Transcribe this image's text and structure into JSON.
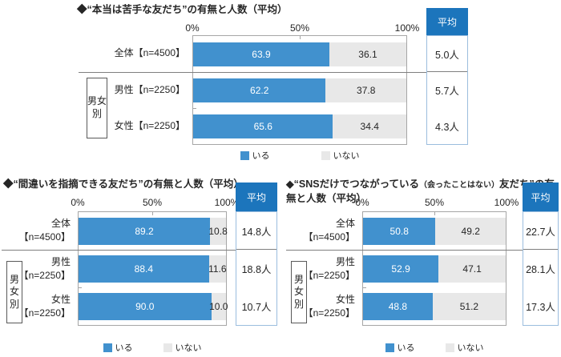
{
  "theme": {
    "bar_blue": "#4191CE",
    "bar_gray": "#E8E8E8",
    "header_blue": "#1C75BC",
    "plot_border": "#A6A6A6",
    "separator": "#7F7F7F",
    "avg_border": "#9BBDDE"
  },
  "chart_data": [
    {
      "type": "bar",
      "orientation": "horizontal",
      "stacked": true,
      "title": "◆“本当は苦手な友だち”の有無と人数（平均）",
      "categories": [
        "全体【n=4500】",
        "男性【n=2250】",
        "女性【n=2250】"
      ],
      "series": [
        {
          "name": "いる",
          "color": "#4191CE",
          "values": [
            63.9,
            62.2,
            65.6
          ]
        },
        {
          "name": "いない",
          "color": "#E8E8E8",
          "values": [
            36.1,
            37.8,
            34.4
          ]
        }
      ],
      "averages": {
        "header": "平均",
        "values": [
          "5.0人",
          "5.7人",
          "4.3人"
        ]
      },
      "group_label": "男女別",
      "x_ticks": [
        "0%",
        "50%",
        "100%"
      ],
      "xlim": [
        0,
        100
      ],
      "legend": [
        "いる",
        "いない"
      ],
      "legend_position": "bottom"
    },
    {
      "type": "bar",
      "orientation": "horizontal",
      "stacked": true,
      "title": "◆“間違いを指摘できる友だち”の有無と人数（平均）",
      "categories": [
        "全体\n【n=4500】",
        "男性\n【n=2250】",
        "女性\n【n=2250】"
      ],
      "series": [
        {
          "name": "いる",
          "color": "#4191CE",
          "values": [
            89.2,
            88.4,
            90.0
          ]
        },
        {
          "name": "いない",
          "color": "#E8E8E8",
          "values": [
            10.8,
            11.6,
            10.0
          ]
        }
      ],
      "averages": {
        "header": "平均",
        "values": [
          "14.8人",
          "18.8人",
          "10.7人"
        ]
      },
      "group_label": "男女別",
      "x_ticks": [
        "0%",
        "50%",
        "100%"
      ],
      "xlim": [
        0,
        100
      ],
      "legend": [
        "いる",
        "いない"
      ],
      "legend_position": "bottom"
    },
    {
      "type": "bar",
      "orientation": "horizontal",
      "stacked": true,
      "title": "◆“SNSだけでつながっている（会ったことはない）友だち”の有無と人数（平均）",
      "title_parts": {
        "pre": "◆“SNSだけでつながっている",
        "small": "（会ったことはない）",
        "post": "友だち”の有無と人数（平均）"
      },
      "categories": [
        "全体\n【n=4500】",
        "男性\n【n=2250】",
        "女性\n【n=2250】"
      ],
      "series": [
        {
          "name": "いる",
          "color": "#4191CE",
          "values": [
            50.8,
            52.9,
            48.8
          ]
        },
        {
          "name": "いない",
          "color": "#E8E8E8",
          "values": [
            49.2,
            47.1,
            51.2
          ]
        }
      ],
      "averages": {
        "header": "平均",
        "values": [
          "22.7人",
          "28.1人",
          "17.3人"
        ]
      },
      "group_label": "男女別",
      "x_ticks": [
        "0%",
        "50%",
        "100%"
      ],
      "xlim": [
        0,
        100
      ],
      "legend": [
        "いる",
        "いない"
      ],
      "legend_position": "bottom"
    }
  ]
}
